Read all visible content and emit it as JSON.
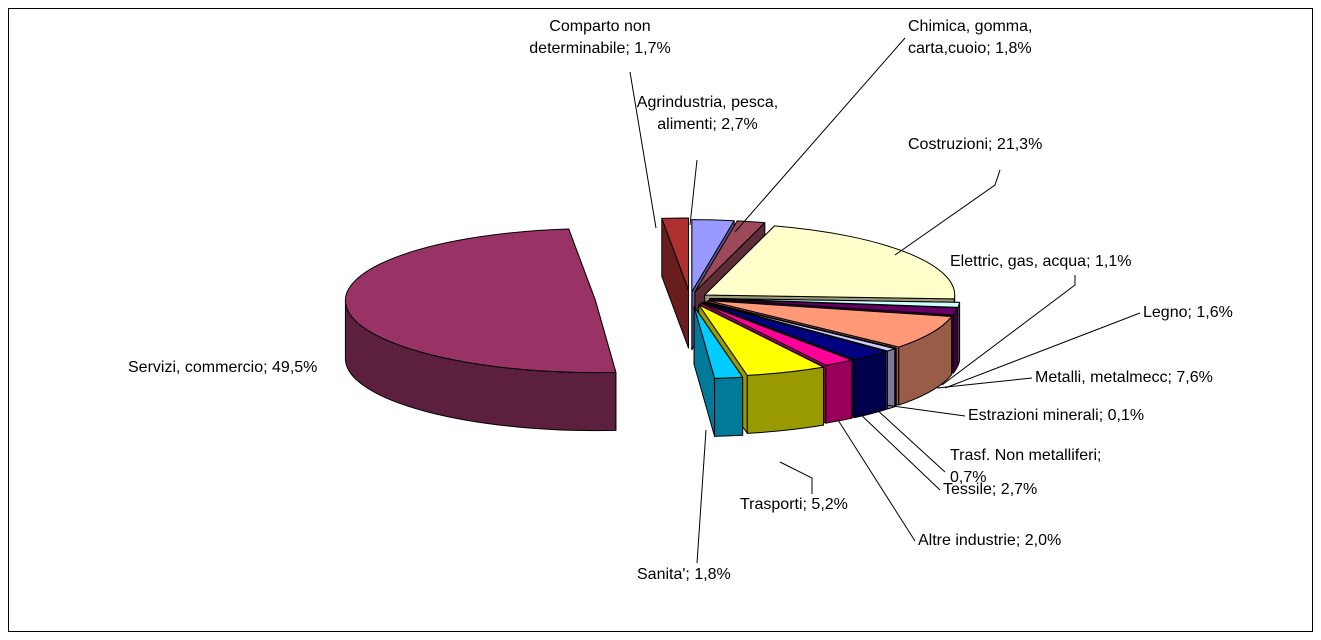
{
  "chart_data": {
    "type": "pie3d",
    "categories": [
      "Agrindustria, pesca, alimenti",
      "Chimica, gomma, carta,cuoio",
      "Costruzioni",
      "Elettric, gas, acqua",
      "Legno",
      "Metalli, metalmecc",
      "Estrazioni minerali",
      "Trasf. Non metalliferi",
      "Tessile",
      "Altre industrie",
      "Trasporti",
      "Sanita'",
      "Servizi, commercio",
      "Comparto non determinabile"
    ],
    "values": [
      2.7,
      1.8,
      21.3,
      1.1,
      1.6,
      7.6,
      0.1,
      0.7,
      2.7,
      2.0,
      5.2,
      1.8,
      49.5,
      1.7
    ],
    "value_labels": [
      "2,7%",
      "1,8%",
      "21,3%",
      "1,1%",
      "1,6%",
      "7,6%",
      "0,1%",
      "0,7%",
      "2,7%",
      "2,0%",
      "5,2%",
      "1,8%",
      "49,5%",
      "1,7%"
    ],
    "label_separator": "; ",
    "colors": [
      "#9999ff",
      "#9c4a5a",
      "#ffffcc",
      "#ccffff",
      "#660066",
      "#ff9977",
      "#ccccff",
      "#ccccff",
      "#000080",
      "#ff0099",
      "#ffff00",
      "#00ccff",
      "#993366",
      "#b03030"
    ]
  }
}
